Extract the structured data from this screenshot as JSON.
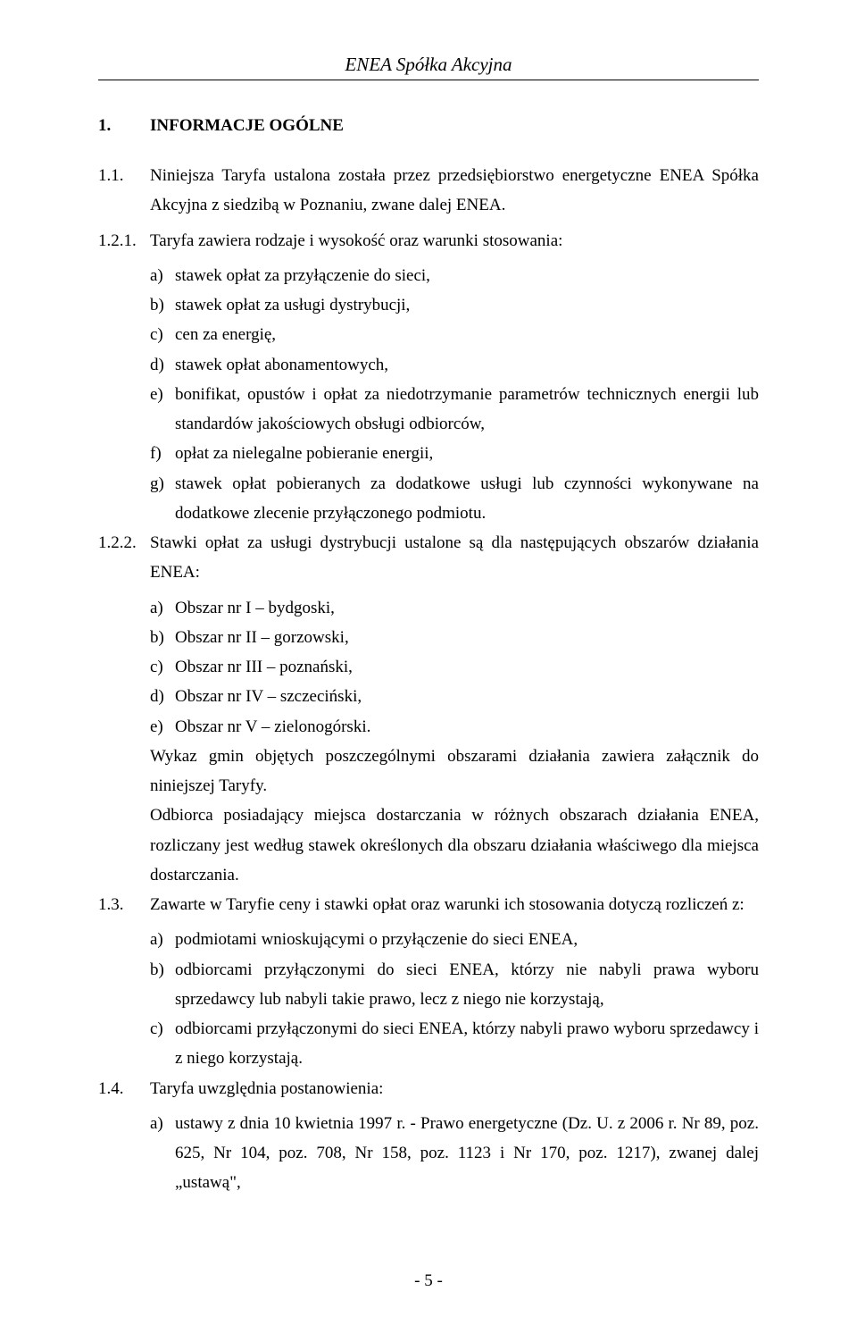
{
  "header": {
    "company": "ENEA Spółka Akcyjna"
  },
  "section": {
    "number": "1.",
    "title": "INFORMACJE OGÓLNE"
  },
  "para_1_1": {
    "num": "1.1.",
    "text": "Niniejsza Taryfa ustalona została przez przedsiębiorstwo energetyczne ENEA Spółka Akcyjna z siedzibą w Poznaniu, zwane dalej ENEA."
  },
  "para_1_2_1": {
    "num": "1.2.1.",
    "intro": "Taryfa zawiera rodzaje i wysokość oraz warunki stosowania:",
    "items": [
      {
        "mark": "a)",
        "text": "stawek opłat za przyłączenie do sieci,"
      },
      {
        "mark": "b)",
        "text": "stawek opłat za usługi dystrybucji,"
      },
      {
        "mark": "c)",
        "text": "cen za energię,"
      },
      {
        "mark": "d)",
        "text": "stawek opłat abonamentowych,"
      },
      {
        "mark": "e)",
        "text": "bonifikat, opustów i opłat za niedotrzymanie parametrów technicznych energii lub standardów jakościowych obsługi odbiorców,"
      },
      {
        "mark": "f)",
        "text": "opłat za nielegalne pobieranie energii,"
      },
      {
        "mark": "g)",
        "text": "stawek opłat pobieranych za dodatkowe usługi lub czynności wykonywane na dodatkowe zlecenie przyłączonego podmiotu."
      }
    ]
  },
  "para_1_2_2": {
    "num": "1.2.2.",
    "intro": "Stawki opłat za usługi dystrybucji ustalone są dla następujących obszarów działania ENEA:",
    "items": [
      {
        "mark": "a)",
        "text": "Obszar nr I – bydgoski,"
      },
      {
        "mark": "b)",
        "text": "Obszar nr II – gorzowski,"
      },
      {
        "mark": "c)",
        "text": "Obszar nr III – poznański,"
      },
      {
        "mark": "d)",
        "text": "Obszar nr IV – szczeciński,"
      },
      {
        "mark": "e)",
        "text": "Obszar nr V – zielonogórski."
      }
    ],
    "after1": "Wykaz gmin objętych poszczególnymi obszarami działania zawiera załącznik do niniejszej Taryfy.",
    "after2": "Odbiorca posiadający miejsca dostarczania w różnych obszarach działania ENEA, rozliczany jest według stawek określonych dla obszaru działania właściwego dla miejsca dostarczania."
  },
  "para_1_3": {
    "num": "1.3.",
    "intro": "Zawarte w Taryfie ceny i stawki opłat oraz warunki ich stosowania dotyczą rozliczeń z:",
    "items": [
      {
        "mark": "a)",
        "text": "podmiotami wnioskującymi o przyłączenie do sieci ENEA,"
      },
      {
        "mark": "b)",
        "text": "odbiorcami przyłączonymi do sieci ENEA, którzy nie nabyli prawa wyboru sprzedawcy lub nabyli takie prawo, lecz z niego nie korzystają,"
      },
      {
        "mark": "c)",
        "text": "odbiorcami przyłączonymi do sieci ENEA, którzy nabyli prawo wyboru sprzedawcy i z niego korzystają."
      }
    ]
  },
  "para_1_4": {
    "num": "1.4.",
    "intro": "Taryfa uwzględnia postanowienia:",
    "items": [
      {
        "mark": "a)",
        "text": "ustawy z dnia 10 kwietnia 1997 r. - Prawo energetyczne (Dz. U. z 2006 r. Nr 89, poz. 625, Nr 104, poz. 708, Nr 158, poz. 1123 i Nr 170, poz. 1217), zwanej dalej „ustawą\","
      }
    ]
  },
  "footer": {
    "page": "- 5 -"
  }
}
